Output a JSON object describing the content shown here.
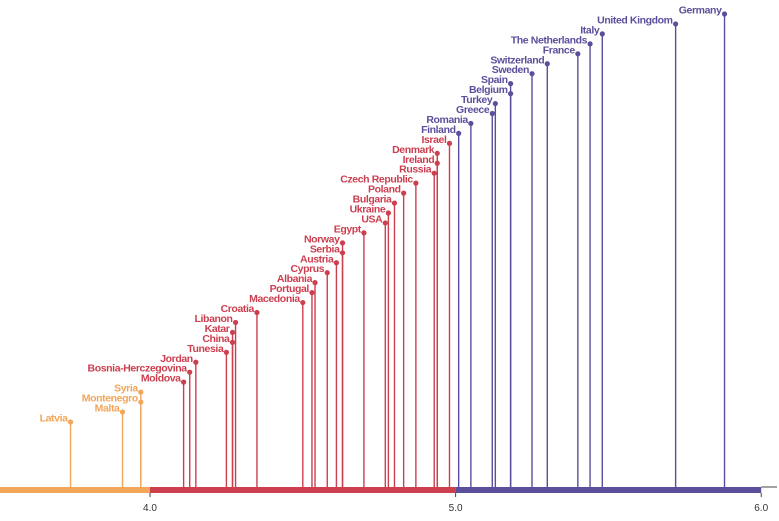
{
  "chart_data": {
    "type": "lollipop",
    "xlim": [
      3.5,
      6.0
    ],
    "ticks": [
      {
        "value": 4.0,
        "label": "4.0"
      },
      {
        "value": 5.0,
        "label": "5.0"
      },
      {
        "value": 6.0,
        "label": "6.0"
      }
    ],
    "bands": [
      {
        "from": 3.5,
        "to": 4.0,
        "color": "#f2a65a"
      },
      {
        "from": 4.0,
        "to": 5.0,
        "color": "#cc3f4f"
      },
      {
        "from": 5.0,
        "to": 6.0,
        "color": "#5b4f9b"
      }
    ],
    "points": [
      {
        "name": "Latvia",
        "value": 3.74
      },
      {
        "name": "Malta",
        "value": 3.91
      },
      {
        "name": "Montenegro",
        "value": 3.97
      },
      {
        "name": "Syria",
        "value": 3.97
      },
      {
        "name": "Moldova",
        "value": 4.11
      },
      {
        "name": "Bosnia-Herczegovina",
        "value": 4.13
      },
      {
        "name": "Jordan",
        "value": 4.15
      },
      {
        "name": "Tunesia",
        "value": 4.25
      },
      {
        "name": "China",
        "value": 4.27
      },
      {
        "name": "Katar",
        "value": 4.27
      },
      {
        "name": "Libanon",
        "value": 4.28
      },
      {
        "name": "Croatia",
        "value": 4.35
      },
      {
        "name": "Macedonia",
        "value": 4.5
      },
      {
        "name": "Portugal",
        "value": 4.53
      },
      {
        "name": "Albania",
        "value": 4.54
      },
      {
        "name": "Cyprus",
        "value": 4.58
      },
      {
        "name": "Austria",
        "value": 4.61
      },
      {
        "name": "Serbia",
        "value": 4.63
      },
      {
        "name": "Norway",
        "value": 4.63
      },
      {
        "name": "Egypt",
        "value": 4.7
      },
      {
        "name": "USA",
        "value": 4.77
      },
      {
        "name": "Ukraine",
        "value": 4.78
      },
      {
        "name": "Bulgaria",
        "value": 4.8
      },
      {
        "name": "Poland",
        "value": 4.83
      },
      {
        "name": "Czech Republic",
        "value": 4.87
      },
      {
        "name": "Russia",
        "value": 4.93
      },
      {
        "name": "Ireland",
        "value": 4.94
      },
      {
        "name": "Denmark",
        "value": 4.94
      },
      {
        "name": "Israel",
        "value": 4.98
      },
      {
        "name": "Finland",
        "value": 5.01
      },
      {
        "name": "Romania",
        "value": 5.05
      },
      {
        "name": "Greece",
        "value": 5.12
      },
      {
        "name": "Turkey",
        "value": 5.13
      },
      {
        "name": "Belgium",
        "value": 5.18
      },
      {
        "name": "Spain",
        "value": 5.18
      },
      {
        "name": "Sweden",
        "value": 5.25
      },
      {
        "name": "Switzerland",
        "value": 5.3
      },
      {
        "name": "France",
        "value": 5.4
      },
      {
        "name": "The Netherlands",
        "value": 5.44
      },
      {
        "name": "Italy",
        "value": 5.48
      },
      {
        "name": "United Kingdom",
        "value": 5.72
      },
      {
        "name": "Germany",
        "value": 5.88
      }
    ]
  }
}
